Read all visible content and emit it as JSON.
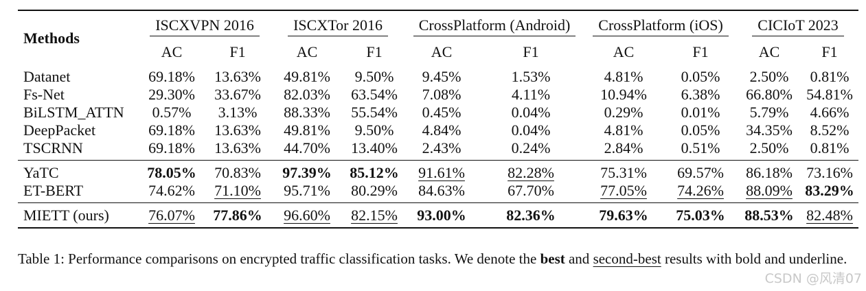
{
  "table": {
    "method_header": "Methods",
    "datasets": [
      "ISCXVPN 2016",
      "ISCXTor 2016",
      "CrossPlatform (Android)",
      "CrossPlatform (iOS)",
      "CICIoT 2023"
    ],
    "metrics": [
      "AC",
      "F1",
      "AC",
      "F1",
      "AC",
      "F1",
      "AC",
      "F1",
      "AC",
      "F1"
    ],
    "blocks": [
      [
        {
          "method": "Datanet",
          "cells": [
            {
              "v": "69.18%",
              "s": ""
            },
            {
              "v": "13.63%",
              "s": ""
            },
            {
              "v": "49.81%",
              "s": ""
            },
            {
              "v": "9.50%",
              "s": ""
            },
            {
              "v": "9.45%",
              "s": ""
            },
            {
              "v": "1.53%",
              "s": ""
            },
            {
              "v": "4.81%",
              "s": ""
            },
            {
              "v": "0.05%",
              "s": ""
            },
            {
              "v": "2.50%",
              "s": ""
            },
            {
              "v": "0.81%",
              "s": ""
            }
          ]
        },
        {
          "method": "Fs-Net",
          "cells": [
            {
              "v": "29.30%",
              "s": ""
            },
            {
              "v": "33.67%",
              "s": ""
            },
            {
              "v": "82.03%",
              "s": ""
            },
            {
              "v": "63.54%",
              "s": ""
            },
            {
              "v": "7.08%",
              "s": ""
            },
            {
              "v": "4.11%",
              "s": ""
            },
            {
              "v": "10.94%",
              "s": ""
            },
            {
              "v": "6.38%",
              "s": ""
            },
            {
              "v": "66.80%",
              "s": ""
            },
            {
              "v": "54.81%",
              "s": ""
            }
          ]
        },
        {
          "method": "BiLSTM_ATTN",
          "cells": [
            {
              "v": "0.57%",
              "s": ""
            },
            {
              "v": "3.13%",
              "s": ""
            },
            {
              "v": "88.33%",
              "s": ""
            },
            {
              "v": "55.54%",
              "s": ""
            },
            {
              "v": "0.45%",
              "s": ""
            },
            {
              "v": "0.04%",
              "s": ""
            },
            {
              "v": "0.29%",
              "s": ""
            },
            {
              "v": "0.01%",
              "s": ""
            },
            {
              "v": "5.79%",
              "s": ""
            },
            {
              "v": "4.66%",
              "s": ""
            }
          ]
        },
        {
          "method": "DeepPacket",
          "cells": [
            {
              "v": "69.18%",
              "s": ""
            },
            {
              "v": "13.63%",
              "s": ""
            },
            {
              "v": "49.81%",
              "s": ""
            },
            {
              "v": "9.50%",
              "s": ""
            },
            {
              "v": "4.84%",
              "s": ""
            },
            {
              "v": "0.04%",
              "s": ""
            },
            {
              "v": "4.81%",
              "s": ""
            },
            {
              "v": "0.05%",
              "s": ""
            },
            {
              "v": "34.35%",
              "s": ""
            },
            {
              "v": "8.52%",
              "s": ""
            }
          ]
        },
        {
          "method": "TSCRNN",
          "cells": [
            {
              "v": "69.18%",
              "s": ""
            },
            {
              "v": "13.63%",
              "s": ""
            },
            {
              "v": "44.70%",
              "s": ""
            },
            {
              "v": "13.40%",
              "s": ""
            },
            {
              "v": "2.43%",
              "s": ""
            },
            {
              "v": "0.24%",
              "s": ""
            },
            {
              "v": "2.84%",
              "s": ""
            },
            {
              "v": "0.51%",
              "s": ""
            },
            {
              "v": "2.50%",
              "s": ""
            },
            {
              "v": "0.81%",
              "s": ""
            }
          ]
        }
      ],
      [
        {
          "method": "YaTC",
          "cells": [
            {
              "v": "78.05%",
              "s": "bold"
            },
            {
              "v": "70.83%",
              "s": ""
            },
            {
              "v": "97.39%",
              "s": "bold"
            },
            {
              "v": "85.12%",
              "s": "bold"
            },
            {
              "v": "91.61%",
              "s": "ul"
            },
            {
              "v": "82.28%",
              "s": "ul"
            },
            {
              "v": "75.31%",
              "s": ""
            },
            {
              "v": "69.57%",
              "s": ""
            },
            {
              "v": "86.18%",
              "s": ""
            },
            {
              "v": "73.16%",
              "s": ""
            }
          ]
        },
        {
          "method": "ET-BERT",
          "cells": [
            {
              "v": "74.62%",
              "s": ""
            },
            {
              "v": "71.10%",
              "s": "ul"
            },
            {
              "v": "95.71%",
              "s": ""
            },
            {
              "v": "80.29%",
              "s": ""
            },
            {
              "v": "84.63%",
              "s": ""
            },
            {
              "v": "67.70%",
              "s": ""
            },
            {
              "v": "77.05%",
              "s": "ul"
            },
            {
              "v": "74.26%",
              "s": "ul"
            },
            {
              "v": "88.09%",
              "s": "ul"
            },
            {
              "v": "83.29%",
              "s": "bold"
            }
          ]
        }
      ],
      [
        {
          "method": "MIETT (ours)",
          "cells": [
            {
              "v": "76.07%",
              "s": "ul"
            },
            {
              "v": "77.86%",
              "s": "bold"
            },
            {
              "v": "96.60%",
              "s": "ul"
            },
            {
              "v": "82.15%",
              "s": "ul"
            },
            {
              "v": "93.00%",
              "s": "bold"
            },
            {
              "v": "82.36%",
              "s": "bold"
            },
            {
              "v": "79.63%",
              "s": "bold"
            },
            {
              "v": "75.03%",
              "s": "bold"
            },
            {
              "v": "88.53%",
              "s": "bold"
            },
            {
              "v": "82.48%",
              "s": "ul"
            }
          ]
        }
      ]
    ]
  },
  "caption": {
    "part1": "Table 1: Performance comparisons on encrypted traffic classification tasks. We denote the ",
    "best": "best",
    "part2": " and ",
    "second_best": "second-best",
    "part3": " results with bold and underline."
  },
  "watermark": "CSDN @风清07"
}
